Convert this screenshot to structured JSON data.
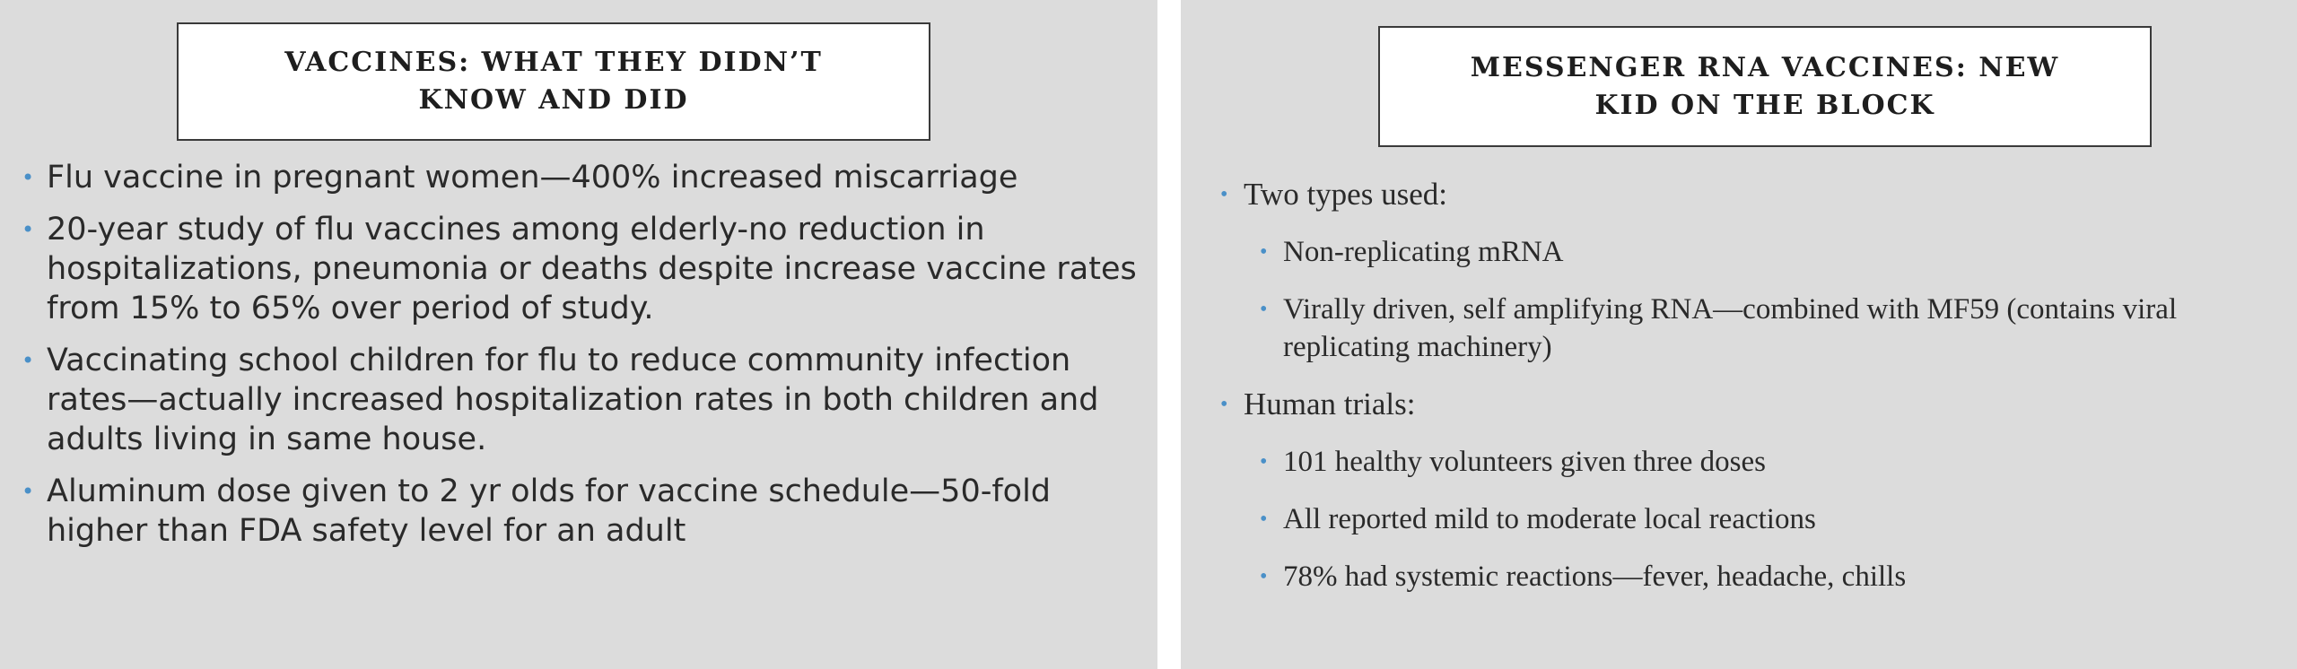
{
  "left_slide": {
    "title": "VACCINES: WHAT THEY DIDN’T KNOW AND DID",
    "bullets": [
      "Flu vaccine in pregnant women—400% increased miscarriage",
      "20-year study of flu vaccines among elderly-no reduction in hospitalizations, pneumonia or deaths despite increase vaccine rates from 15% to 65% over period of study.",
      "Vaccinating school children for flu to reduce community infection rates—actually increased hospitalization rates in both children and adults living in same house.",
      "Aluminum dose given to 2 yr olds for vaccine schedule—50-fold higher than FDA safety level for an adult"
    ]
  },
  "right_slide": {
    "title": "MESSENGER RNA VACCINES: NEW KID ON THE BLOCK",
    "items": [
      {
        "level": 1,
        "text": "Two types used:"
      },
      {
        "level": 2,
        "text": "Non-replicating mRNA"
      },
      {
        "level": 2,
        "text": "Virally driven, self amplifying RNA—combined with MF59 (contains viral replicating machinery)"
      },
      {
        "level": 1,
        "text": "Human trials:"
      },
      {
        "level": 2,
        "text": "101 healthy volunteers given three doses"
      },
      {
        "level": 2,
        "text": "All reported mild to moderate local reactions"
      },
      {
        "level": 2,
        "text": "78% had systemic reactions—fever, headache, chills"
      }
    ]
  },
  "colors": {
    "slide_background": "#dcdcdc",
    "bullet": "#4a90c8",
    "text": "#2a2a2a"
  },
  "icons": {
    "bullet": "bullet-dot-icon"
  }
}
